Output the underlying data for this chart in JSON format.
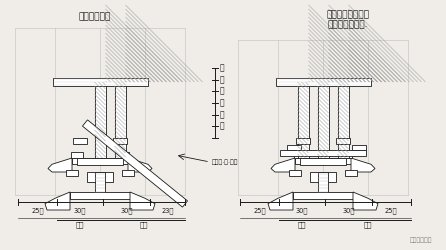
{
  "background_color": "#f0ede8",
  "title_left": "四铺作外檐昂",
  "title_right_line1": "四铺作里外盘一抄",
  "title_right_line2": "卷跳里内用重栱.",
  "left_dims": [
    "25分",
    "30分",
    "30分",
    "23分"
  ],
  "right_dims": [
    "25分",
    "30分",
    "30分",
    "25分"
  ],
  "left_labels": [
    "里跳",
    "外跳"
  ],
  "right_labels": [
    "里跳",
    "外跳"
  ],
  "scale_labels": [
    "村",
    "尺",
    "村",
    "尺",
    "村",
    "尺"
  ],
  "scale_note": "檩桁平·数·位分",
  "watermark": "九几设计教育",
  "dark": "#1a1a1a",
  "hatch_color": "#888888",
  "grid_color": "#c0c0c0"
}
